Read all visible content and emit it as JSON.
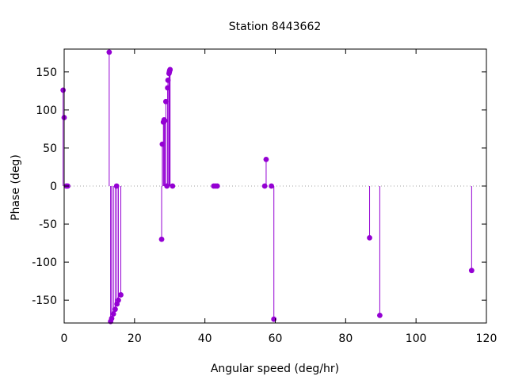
{
  "chart_data": {
    "type": "scatter",
    "style": "impulses-with-points",
    "title": "Station 8443662",
    "xlabel": "Angular speed (deg/hr)",
    "ylabel": "Phase (deg)",
    "xlim": [
      0,
      120
    ],
    "ylim": [
      -180,
      180
    ],
    "xticks": [
      0,
      20,
      40,
      60,
      80,
      100,
      120
    ],
    "yticks": [
      -150,
      -100,
      -50,
      0,
      50,
      100,
      150
    ],
    "zero_line": true,
    "grid": false,
    "color": "#9400d3",
    "series": [
      {
        "points": [
          {
            "x": -0.3,
            "y": 126
          },
          {
            "x": 0.0,
            "y": 90
          },
          {
            "x": 0.6,
            "y": 0
          },
          {
            "x": 1.0,
            "y": 0
          },
          {
            "x": 12.8,
            "y": 176
          },
          {
            "x": 13.2,
            "y": -178
          },
          {
            "x": 13.5,
            "y": -174
          },
          {
            "x": 14.0,
            "y": -168
          },
          {
            "x": 14.5,
            "y": -162
          },
          {
            "x": 14.9,
            "y": 0
          },
          {
            "x": 15.0,
            "y": -155
          },
          {
            "x": 15.4,
            "y": -150
          },
          {
            "x": 16.1,
            "y": -143
          },
          {
            "x": 27.7,
            "y": -70
          },
          {
            "x": 27.9,
            "y": 55
          },
          {
            "x": 28.2,
            "y": 84
          },
          {
            "x": 28.4,
            "y": 87
          },
          {
            "x": 28.6,
            "y": 86
          },
          {
            "x": 28.9,
            "y": 111
          },
          {
            "x": 29.2,
            "y": 0
          },
          {
            "x": 29.4,
            "y": 129
          },
          {
            "x": 29.5,
            "y": 139
          },
          {
            "x": 29.8,
            "y": 148
          },
          {
            "x": 29.9,
            "y": 150
          },
          {
            "x": 30.0,
            "y": 152
          },
          {
            "x": 30.1,
            "y": 153
          },
          {
            "x": 30.8,
            "y": 0
          },
          {
            "x": 42.5,
            "y": 0
          },
          {
            "x": 43.0,
            "y": 0
          },
          {
            "x": 43.5,
            "y": 0
          },
          {
            "x": 57.0,
            "y": 0
          },
          {
            "x": 57.4,
            "y": 35
          },
          {
            "x": 58.9,
            "y": 0
          },
          {
            "x": 59.6,
            "y": -175
          },
          {
            "x": 86.8,
            "y": -68
          },
          {
            "x": 89.7,
            "y": -170
          },
          {
            "x": 115.8,
            "y": -111
          }
        ]
      }
    ]
  }
}
